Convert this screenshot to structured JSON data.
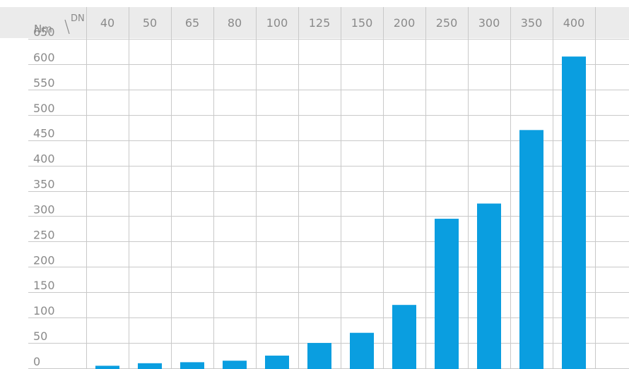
{
  "chart_data": {
    "type": "bar",
    "title": "",
    "corner_labels": {
      "y_unit": "Nm",
      "x_unit": "DN"
    },
    "categories": [
      "40",
      "50",
      "65",
      "80",
      "100",
      "125",
      "150",
      "200",
      "250",
      "300",
      "350",
      "400"
    ],
    "values": [
      5,
      10,
      12,
      15,
      25,
      50,
      70,
      125,
      295,
      325,
      470,
      615
    ],
    "y_ticks": [
      "0",
      "50",
      "100",
      "150",
      "200",
      "250",
      "300",
      "350",
      "400",
      "450",
      "500",
      "550",
      "600",
      "650"
    ],
    "ylim": [
      0,
      650
    ],
    "grid": true,
    "legend": "none",
    "colors": {
      "bar": "#0a9ee0",
      "header_band": "#ebebeb",
      "grid": "#c9c9c9",
      "text": "#8a8a8a"
    }
  }
}
